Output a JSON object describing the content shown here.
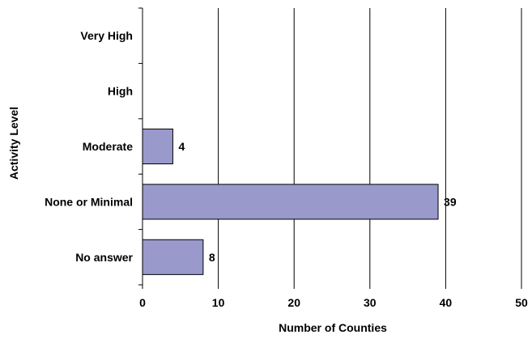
{
  "chart_data": {
    "type": "bar",
    "orientation": "horizontal",
    "title": "",
    "xlabel": "Number of Counties",
    "ylabel": "Activity Level",
    "categories": [
      "Very High",
      "High",
      "Moderate",
      "None or Minimal",
      "No answer"
    ],
    "values": [
      null,
      null,
      4,
      39,
      8
    ],
    "data_labels": [
      "",
      "",
      "4",
      "39",
      "8"
    ],
    "xlim": [
      0,
      50
    ],
    "xticks": [
      0,
      10,
      20,
      30,
      40,
      50
    ],
    "grid": true,
    "legend": "none",
    "bar_color": "#9999cc",
    "bar_border_color": "#000000",
    "grid_color": "#000000"
  }
}
